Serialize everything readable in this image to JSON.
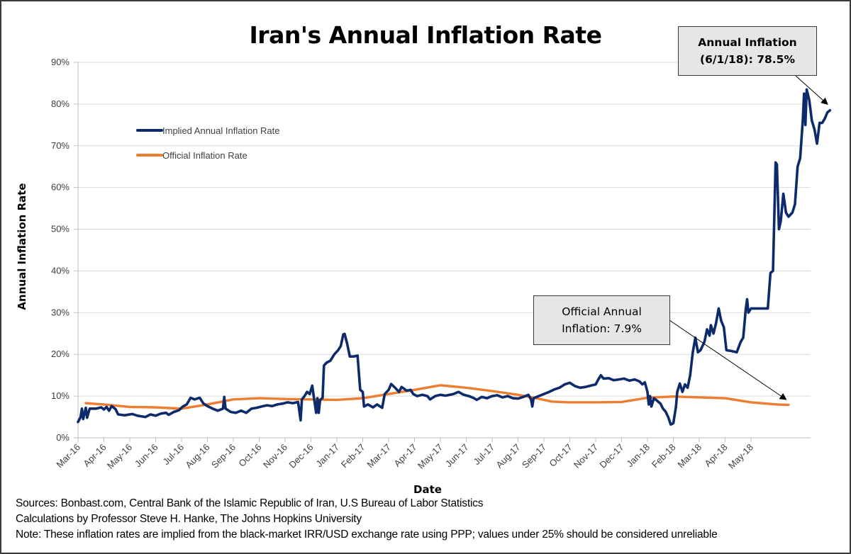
{
  "chart_data": {
    "type": "line",
    "title": "Iran's Annual Inflation Rate",
    "xlabel": "Date",
    "ylabel": "Annual Inflation Rate",
    "ylim": [
      0,
      90
    ],
    "y_ticks": [
      "0%",
      "10%",
      "20%",
      "30%",
      "40%",
      "50%",
      "60%",
      "70%",
      "80%",
      "90%"
    ],
    "y_tick_values": [
      0,
      10,
      20,
      30,
      40,
      50,
      60,
      70,
      80,
      90
    ],
    "x_ticks": [
      "Mar-16",
      "Apr-16",
      "May-16",
      "Jun-16",
      "Jul-16",
      "Aug-16",
      "Sep-16",
      "Oct-16",
      "Nov-16",
      "Dec-16",
      "Jan-17",
      "Feb-17",
      "Mar-17",
      "Apr-17",
      "May-17",
      "Jun-17",
      "Jul-17",
      "Aug-17",
      "Sep-17",
      "Oct-17",
      "Nov-17",
      "Dec-17",
      "Jan-18",
      "Feb-18",
      "Mar-18",
      "Apr-18",
      "May-18"
    ],
    "x_unit": "months since Mar-16",
    "grid": "horizontal",
    "legend_position": "top-left",
    "series": [
      {
        "name": "Implied Annual Inflation Rate",
        "color": "#0d2a6b",
        "points": [
          [
            0.0,
            3.8
          ],
          [
            0.1,
            5.0
          ],
          [
            0.15,
            7.0
          ],
          [
            0.2,
            4.5
          ],
          [
            0.3,
            7.2
          ],
          [
            0.35,
            4.8
          ],
          [
            0.45,
            7.0
          ],
          [
            0.7,
            7.0
          ],
          [
            0.9,
            7.3
          ],
          [
            1.0,
            6.8
          ],
          [
            1.1,
            7.4
          ],
          [
            1.2,
            6.5
          ],
          [
            1.3,
            7.6
          ],
          [
            1.45,
            6.9
          ],
          [
            1.55,
            5.6
          ],
          [
            1.8,
            5.4
          ],
          [
            2.1,
            5.7
          ],
          [
            2.3,
            5.3
          ],
          [
            2.6,
            5.0
          ],
          [
            2.8,
            5.6
          ],
          [
            3.0,
            5.3
          ],
          [
            3.2,
            5.8
          ],
          [
            3.4,
            6.0
          ],
          [
            3.5,
            5.5
          ],
          [
            3.7,
            6.2
          ],
          [
            3.9,
            6.6
          ],
          [
            4.05,
            7.5
          ],
          [
            4.2,
            8.0
          ],
          [
            4.35,
            9.6
          ],
          [
            4.5,
            9.2
          ],
          [
            4.7,
            9.6
          ],
          [
            4.85,
            8.2
          ],
          [
            5.0,
            7.6
          ],
          [
            5.2,
            7.0
          ],
          [
            5.4,
            6.5
          ],
          [
            5.6,
            7.0
          ],
          [
            5.65,
            9.8
          ],
          [
            5.7,
            7.0
          ],
          [
            5.9,
            6.2
          ],
          [
            6.1,
            6.0
          ],
          [
            6.3,
            6.5
          ],
          [
            6.5,
            6.0
          ],
          [
            6.7,
            7.0
          ],
          [
            6.9,
            7.2
          ],
          [
            7.1,
            7.5
          ],
          [
            7.3,
            7.8
          ],
          [
            7.5,
            7.6
          ],
          [
            7.7,
            8.0
          ],
          [
            7.9,
            8.2
          ],
          [
            8.1,
            8.5
          ],
          [
            8.3,
            8.3
          ],
          [
            8.5,
            8.6
          ],
          [
            8.6,
            4.2
          ],
          [
            8.65,
            9.2
          ],
          [
            8.75,
            10.0
          ],
          [
            8.85,
            11.0
          ],
          [
            8.95,
            10.5
          ],
          [
            9.05,
            12.5
          ],
          [
            9.1,
            10.3
          ],
          [
            9.2,
            6.0
          ],
          [
            9.25,
            9.5
          ],
          [
            9.3,
            6.0
          ],
          [
            9.35,
            9.0
          ],
          [
            9.45,
            9.6
          ],
          [
            9.5,
            17.3
          ],
          [
            9.6,
            18.0
          ],
          [
            9.75,
            18.5
          ],
          [
            9.9,
            20.0
          ],
          [
            10.05,
            21.0
          ],
          [
            10.15,
            22.0
          ],
          [
            10.25,
            24.8
          ],
          [
            10.3,
            24.9
          ],
          [
            10.4,
            22.5
          ],
          [
            10.5,
            19.5
          ],
          [
            10.65,
            19.5
          ],
          [
            10.8,
            19.7
          ],
          [
            10.9,
            11.5
          ],
          [
            11.0,
            11.0
          ],
          [
            11.05,
            7.5
          ],
          [
            11.2,
            8.0
          ],
          [
            11.4,
            7.3
          ],
          [
            11.55,
            8.0
          ],
          [
            11.75,
            7.2
          ],
          [
            11.85,
            10.5
          ],
          [
            12.0,
            11.5
          ],
          [
            12.1,
            12.9
          ],
          [
            12.25,
            12.0
          ],
          [
            12.4,
            11.0
          ],
          [
            12.5,
            12.2
          ],
          [
            12.7,
            11.3
          ],
          [
            12.85,
            11.5
          ],
          [
            12.95,
            10.5
          ],
          [
            13.1,
            10.0
          ],
          [
            13.3,
            10.3
          ],
          [
            13.5,
            10.0
          ],
          [
            13.6,
            9.2
          ],
          [
            13.8,
            10.0
          ],
          [
            14.0,
            10.3
          ],
          [
            14.2,
            10.1
          ],
          [
            14.5,
            10.5
          ],
          [
            14.7,
            11.0
          ],
          [
            14.9,
            10.3
          ],
          [
            15.1,
            10.0
          ],
          [
            15.3,
            9.5
          ],
          [
            15.4,
            9.1
          ],
          [
            15.6,
            9.8
          ],
          [
            15.8,
            9.5
          ],
          [
            16.0,
            10.0
          ],
          [
            16.2,
            10.2
          ],
          [
            16.4,
            9.7
          ],
          [
            16.6,
            10.0
          ],
          [
            16.8,
            9.5
          ],
          [
            17.0,
            9.4
          ],
          [
            17.2,
            9.8
          ],
          [
            17.4,
            10.3
          ],
          [
            17.5,
            9.2
          ],
          [
            17.55,
            7.5
          ],
          [
            17.6,
            9.5
          ],
          [
            17.8,
            10.0
          ],
          [
            18.0,
            10.5
          ],
          [
            18.2,
            11.0
          ],
          [
            18.4,
            11.6
          ],
          [
            18.6,
            12.0
          ],
          [
            18.8,
            12.8
          ],
          [
            19.0,
            13.2
          ],
          [
            19.2,
            12.4
          ],
          [
            19.4,
            12.0
          ],
          [
            19.6,
            12.2
          ],
          [
            19.8,
            12.5
          ],
          [
            20.0,
            12.8
          ],
          [
            20.1,
            14.0
          ],
          [
            20.2,
            15.0
          ],
          [
            20.3,
            14.2
          ],
          [
            20.5,
            14.3
          ],
          [
            20.7,
            13.8
          ],
          [
            20.9,
            14.0
          ],
          [
            21.1,
            14.2
          ],
          [
            21.3,
            13.7
          ],
          [
            21.5,
            14.0
          ],
          [
            21.7,
            13.5
          ],
          [
            21.8,
            12.8
          ],
          [
            21.9,
            13.3
          ],
          [
            22.0,
            11.0
          ],
          [
            22.05,
            8.0
          ],
          [
            22.1,
            10.0
          ],
          [
            22.15,
            7.5
          ],
          [
            22.25,
            9.5
          ],
          [
            22.35,
            9.0
          ],
          [
            22.5,
            8.2
          ],
          [
            22.6,
            7.0
          ],
          [
            22.7,
            6.3
          ],
          [
            22.8,
            5.0
          ],
          [
            22.9,
            3.2
          ],
          [
            23.0,
            3.5
          ],
          [
            23.1,
            7.5
          ],
          [
            23.15,
            11.0
          ],
          [
            23.25,
            13.0
          ],
          [
            23.35,
            11.0
          ],
          [
            23.45,
            12.8
          ],
          [
            23.55,
            12.0
          ],
          [
            23.65,
            15.0
          ],
          [
            23.75,
            20.5
          ],
          [
            23.85,
            24.0
          ],
          [
            23.95,
            20.5
          ],
          [
            24.05,
            21.0
          ],
          [
            24.2,
            23.0
          ],
          [
            24.3,
            26.0
          ],
          [
            24.4,
            24.5
          ],
          [
            24.45,
            27.0
          ],
          [
            24.55,
            25.0
          ],
          [
            24.65,
            27.5
          ],
          [
            24.75,
            31.0
          ],
          [
            24.85,
            28.0
          ],
          [
            24.95,
            26.5
          ],
          [
            25.05,
            21.0
          ],
          [
            25.25,
            20.8
          ],
          [
            25.45,
            20.5
          ],
          [
            25.6,
            23.0
          ],
          [
            25.7,
            24.0
          ],
          [
            25.8,
            31.0
          ],
          [
            25.85,
            33.2
          ],
          [
            25.9,
            30.0
          ],
          [
            26.0,
            31.0
          ],
          [
            26.5,
            31.0
          ],
          [
            26.65,
            31.0
          ],
          [
            26.75,
            39.5
          ],
          [
            26.85,
            40.0
          ],
          [
            26.95,
            66.0
          ],
          [
            27.0,
            65.5
          ],
          [
            27.08,
            50.0
          ],
          [
            27.15,
            52.0
          ],
          [
            27.25,
            58.5
          ],
          [
            27.35,
            54.0
          ],
          [
            27.45,
            53.0
          ],
          [
            27.6,
            54.0
          ],
          [
            27.7,
            56.0
          ],
          [
            27.8,
            65.0
          ],
          [
            27.9,
            67.0
          ],
          [
            28.0,
            76.0
          ],
          [
            28.05,
            82.5
          ],
          [
            28.1,
            75.0
          ],
          [
            28.15,
            83.5
          ],
          [
            28.25,
            81.0
          ],
          [
            28.35,
            76.0
          ],
          [
            28.45,
            74.0
          ],
          [
            28.55,
            70.5
          ],
          [
            28.65,
            75.5
          ],
          [
            28.75,
            75.5
          ],
          [
            28.85,
            76.5
          ],
          [
            28.95,
            78.0
          ],
          [
            29.05,
            78.5
          ]
        ]
      },
      {
        "name": "Official Inflation Rate",
        "color": "#ed7d31",
        "points": [
          [
            0.3,
            8.3
          ],
          [
            1.0,
            8.0
          ],
          [
            2.0,
            7.4
          ],
          [
            3.0,
            7.3
          ],
          [
            4.0,
            7.0
          ],
          [
            5.0,
            8.0
          ],
          [
            6.0,
            9.2
          ],
          [
            7.0,
            9.5
          ],
          [
            8.0,
            9.3
          ],
          [
            9.0,
            9.2
          ],
          [
            10.0,
            9.1
          ],
          [
            11.0,
            9.5
          ],
          [
            12.0,
            10.5
          ],
          [
            13.0,
            11.5
          ],
          [
            14.0,
            12.6
          ],
          [
            15.0,
            12.0
          ],
          [
            16.0,
            11.2
          ],
          [
            17.0,
            10.3
          ],
          [
            17.7,
            9.5
          ],
          [
            18.3,
            8.7
          ],
          [
            19.0,
            8.5
          ],
          [
            20.0,
            8.5
          ],
          [
            21.0,
            8.6
          ],
          [
            22.0,
            9.6
          ],
          [
            23.0,
            9.9
          ],
          [
            24.0,
            9.7
          ],
          [
            25.0,
            9.5
          ],
          [
            26.0,
            8.5
          ],
          [
            27.0,
            8.0
          ],
          [
            27.45,
            7.9
          ]
        ]
      }
    ],
    "annotations": [
      {
        "text": "Annual Inflation (6/1/18): 78.5%",
        "points_to": [
          29.05,
          78.5
        ]
      },
      {
        "text": "Official Annual Inflation: 7.9%",
        "points_to": [
          27.45,
          7.9
        ]
      }
    ]
  },
  "legend": {
    "implied_label": "Implied Annual Inflation Rate",
    "official_label": "Official Inflation Rate"
  },
  "callouts": {
    "top_line1": "Annual Inflation",
    "top_line2": "(6/1/18): 78.5%",
    "mid_line1": "Official Annual",
    "mid_line2": "Inflation: 7.9%"
  },
  "footer": {
    "sources": "Sources: Bonbast.com, Central Bank of the Islamic Republic of Iran, U.S Bureau of Labor Statistics",
    "calculations": "Calculations by Professor Steve H. Hanke, The Johns Hopkins University",
    "note": "Note: These inflation rates are implied from the black-market IRR/USD exchange rate using PPP; values under 25% should be considered unreliable"
  }
}
